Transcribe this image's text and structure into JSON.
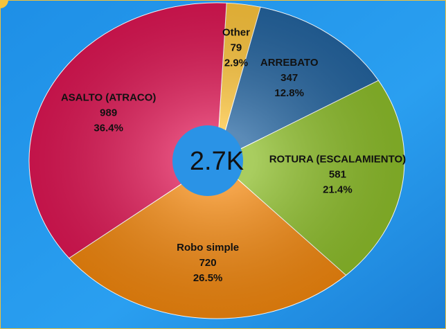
{
  "chart_data": {
    "type": "donut",
    "categories": [
      "Other",
      "ARREBATO",
      "ROTURA (ESCALAMIENTO)",
      "Robo simple",
      "ASALTO (ATRACO)"
    ],
    "values": [
      79,
      347,
      581,
      720,
      989
    ],
    "percent_labels": [
      "2.9%",
      "12.8%",
      "21.4%",
      "26.5%",
      "36.4%"
    ],
    "colors": [
      "#fcc43c",
      "#24649f",
      "#8cbc2a",
      "#f0860e",
      "#dc1653"
    ],
    "center_label": "2.7K"
  }
}
